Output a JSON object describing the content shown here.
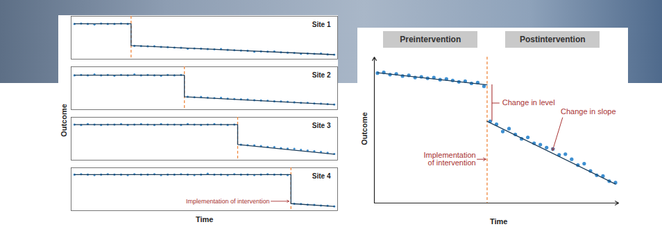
{
  "chart_data": [
    {
      "type": "line",
      "xlabel": "Time",
      "ylabel": "Outcome",
      "xlim": [
        -0.5,
        39.5
      ],
      "ylim": [
        0,
        100
      ],
      "tick_labels": false,
      "grid": false,
      "x": [
        0,
        1,
        2,
        3,
        4,
        5,
        6,
        7,
        8,
        9,
        10,
        11,
        12,
        13,
        14,
        15,
        16,
        17,
        18,
        19,
        20,
        21,
        22,
        23,
        24,
        25,
        26,
        27,
        28,
        29,
        30,
        31,
        32,
        33,
        34,
        35,
        36,
        37,
        38,
        39
      ],
      "panels": [
        {
          "title": "Site 1",
          "intervention": {
            "x": 8.5,
            "color": "#f0883e",
            "line_style": "dashed"
          },
          "series": [
            {
              "type": "scatter",
              "marker": "circle",
              "color": "#3d8fd1",
              "values": [
                82,
                83,
                82,
                81,
                83,
                82,
                82,
                83,
                82,
                31,
                30.5,
                30,
                30,
                28.5,
                28,
                27,
                26.5,
                24.5,
                25,
                24.5,
                23.5,
                23,
                23.5,
                21.5,
                21,
                20,
                19.5,
                17.5,
                18,
                17.5,
                18,
                16,
                15,
                14.5,
                12.5,
                13,
                12.5,
                13,
                11,
                10.5
              ]
            },
            {
              "type": "line",
              "color": "#1c3d5a",
              "x": [
                0,
                8.5,
                8.5,
                39
              ],
              "values": [
                82.3,
                82.3,
                31.5,
                10.5
              ]
            }
          ]
        },
        {
          "title": "Site 2",
          "intervention": {
            "x": 16.5,
            "color": "#f0883e",
            "line_style": "dashed"
          },
          "series": [
            {
              "type": "scatter",
              "marker": "circle",
              "color": "#3d8fd1",
              "values": [
                80,
                81,
                80,
                82,
                80,
                81,
                79,
                81,
                80,
                82,
                80,
                81,
                80,
                79,
                81,
                80,
                81,
                30,
                29,
                29.5,
                28,
                27,
                27.5,
                25.5,
                25,
                24,
                23.5,
                22,
                21.5,
                21,
                19.5,
                19,
                18.5,
                17,
                16,
                16,
                14.5,
                14,
                13,
                12
              ]
            },
            {
              "type": "line",
              "color": "#1c3d5a",
              "x": [
                0,
                16.5,
                16.5,
                39
              ],
              "values": [
                80.5,
                80.5,
                30,
                12
              ]
            }
          ]
        },
        {
          "title": "Site 3",
          "intervention": {
            "x": 24.5,
            "color": "#f0883e",
            "line_style": "dashed"
          },
          "series": [
            {
              "type": "scatter",
              "marker": "circle",
              "color": "#3d8fd1",
              "values": [
                83,
                82,
                84,
                83,
                82,
                83,
                83,
                84,
                82,
                83,
                84,
                83,
                82,
                84,
                83,
                83,
                82,
                84,
                83,
                82,
                83,
                84,
                83,
                82,
                83,
                36,
                35,
                34.5,
                33,
                31,
                30.5,
                28,
                27,
                26.5,
                24,
                22.5,
                21,
                19,
                17,
                14.5
              ]
            },
            {
              "type": "line",
              "color": "#1c3d5a",
              "x": [
                0,
                24.5,
                24.5,
                39
              ],
              "values": [
                83,
                83,
                36.5,
                14
              ]
            }
          ]
        },
        {
          "title": "Site 4",
          "intervention": {
            "x": 32.5,
            "color": "#f0883e",
            "line_style": "dashed"
          },
          "annotation": "Implementation of intervention",
          "series": [
            {
              "type": "scatter",
              "marker": "circle",
              "color": "#3d8fd1",
              "values": [
                84,
                85,
                84,
                83,
                84,
                85,
                84,
                84,
                83,
                85,
                84,
                84,
                85,
                83,
                84,
                84,
                85,
                84,
                83,
                84,
                86,
                84,
                84,
                83,
                85,
                84,
                84,
                83,
                84,
                85,
                84,
                84,
                83,
                16,
                15.5,
                14,
                13.5,
                12,
                11.5,
                10
              ]
            },
            {
              "type": "line",
              "color": "#1c3d5a",
              "x": [
                0,
                32.5,
                32.5,
                39
              ],
              "values": [
                84,
                84,
                16.5,
                10
              ]
            }
          ]
        }
      ]
    },
    {
      "type": "line",
      "xlabel": "Time",
      "ylabel": "Outcome",
      "xlim": [
        -0.5,
        38.5
      ],
      "ylim": [
        0,
        100
      ],
      "tick_labels": false,
      "grid": false,
      "phases": [
        "Preintervention",
        "Postintervention"
      ],
      "annotations": [
        "Change in level",
        "Change in slope",
        "Implementation of intervention"
      ],
      "intervention": {
        "x": 17.5,
        "color": "#f0883e",
        "line_style": "dashed"
      },
      "x": [
        0,
        1,
        2,
        3,
        4,
        5,
        6,
        7,
        8,
        9,
        10,
        11,
        12,
        13,
        14,
        15,
        16,
        17,
        18,
        19,
        20,
        21,
        22,
        23,
        24,
        25,
        26,
        27,
        28,
        29,
        30,
        31,
        32,
        33,
        34,
        35,
        36,
        37,
        38
      ],
      "series": [
        {
          "type": "scatter",
          "marker": "circle",
          "color": "#3d8fd1",
          "values": [
            89,
            89.5,
            88,
            88.5,
            87,
            87.5,
            86,
            86.5,
            85.5,
            86,
            84.5,
            85,
            84,
            83,
            83.5,
            82,
            82.5,
            80,
            56,
            54,
            49,
            51,
            47,
            44,
            45,
            41,
            40,
            38,
            37,
            33,
            33.5,
            30,
            26,
            27,
            22,
            19,
            18.5,
            15,
            14
          ]
        },
        {
          "type": "line",
          "color": "#1c3d5a",
          "x": [
            0,
            17.5
          ],
          "values": [
            89.3,
            81
          ]
        },
        {
          "type": "line",
          "color": "#1c3d5a",
          "x": [
            17.5,
            38
          ],
          "values": [
            56,
            13
          ]
        }
      ]
    }
  ]
}
